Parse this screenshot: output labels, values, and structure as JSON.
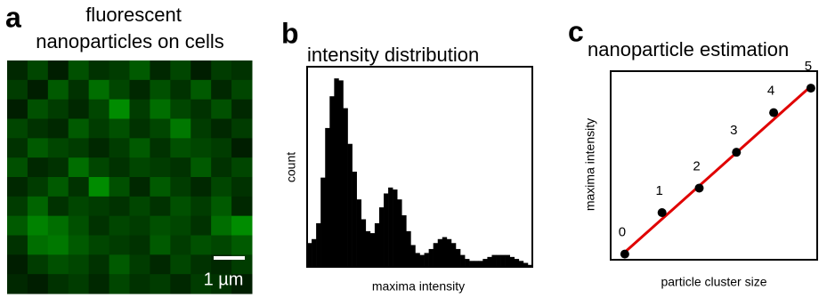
{
  "chart_data": [
    {
      "type": "heatmap",
      "panel": "a",
      "title": [
        "fluorescent",
        "nanoparticles on cells"
      ],
      "color": "#00c800",
      "scale_bar_label": "1 µm",
      "values": [
        [
          20,
          35,
          15,
          40,
          25,
          30,
          45,
          20,
          35,
          15,
          30,
          25
        ],
        [
          30,
          15,
          45,
          25,
          55,
          35,
          20,
          40,
          25,
          45,
          20,
          35
        ],
        [
          15,
          40,
          30,
          20,
          35,
          70,
          30,
          55,
          35,
          25,
          40,
          20
        ],
        [
          35,
          25,
          20,
          45,
          30,
          40,
          25,
          35,
          60,
          30,
          20,
          30
        ],
        [
          25,
          45,
          35,
          30,
          20,
          30,
          45,
          25,
          40,
          35,
          30,
          15
        ],
        [
          40,
          20,
          25,
          55,
          35,
          25,
          35,
          30,
          25,
          45,
          25,
          35
        ],
        [
          20,
          30,
          45,
          25,
          70,
          40,
          20,
          45,
          30,
          20,
          35,
          25
        ],
        [
          30,
          50,
          25,
          35,
          30,
          25,
          35,
          25,
          40,
          30,
          45,
          20
        ],
        [
          45,
          65,
          55,
          40,
          25,
          35,
          30,
          40,
          35,
          25,
          55,
          70
        ],
        [
          25,
          55,
          60,
          45,
          35,
          30,
          25,
          45,
          30,
          40,
          35,
          45
        ],
        [
          15,
          30,
          40,
          35,
          25,
          45,
          30,
          20,
          35,
          25,
          20,
          30
        ],
        [
          20,
          15,
          25,
          30,
          20,
          35,
          25,
          30,
          20,
          30,
          25,
          15
        ]
      ],
      "zlim": [
        0,
        100
      ]
    },
    {
      "type": "histogram",
      "panel": "b",
      "title": "intensity distribution",
      "xlabel": "maxima intensity",
      "ylabel": "count",
      "color": "#000000",
      "bins": [
        0,
        1,
        2,
        3,
        4,
        5,
        6,
        7,
        8,
        9,
        10,
        11,
        12,
        13,
        14,
        15,
        16,
        17,
        18,
        19,
        20,
        21,
        22,
        23,
        24,
        25,
        26,
        27,
        28,
        29,
        30,
        31,
        32,
        33,
        34,
        35,
        36,
        37,
        38,
        39,
        40,
        41,
        42,
        43,
        44,
        45,
        46,
        47,
        48,
        49,
        50
      ],
      "values": [
        12,
        14,
        22,
        45,
        70,
        86,
        95,
        94,
        80,
        62,
        48,
        34,
        24,
        18,
        17,
        22,
        30,
        37,
        40,
        39,
        34,
        26,
        18,
        11,
        7,
        6,
        7,
        9,
        12,
        14,
        15,
        14,
        12,
        9,
        6,
        4,
        3,
        3,
        3,
        4,
        5,
        6,
        6,
        6,
        6,
        5,
        4,
        3,
        2,
        1
      ],
      "xlim": [
        0,
        50
      ],
      "ylim": [
        0,
        100
      ]
    },
    {
      "type": "scatter",
      "panel": "c",
      "title": "nanoparticle estimation",
      "xlabel": "particle cluster size",
      "ylabel": "maxima intensity",
      "color": "#000000",
      "x": [
        0,
        1,
        2,
        3,
        4,
        5
      ],
      "values": [
        0.03,
        0.25,
        0.38,
        0.57,
        0.78,
        0.91
      ],
      "fit": {
        "color": "#e00000",
        "x": [
          0,
          5
        ],
        "values": [
          0.04,
          0.92
        ]
      },
      "xlim": [
        -0.38,
        5.17
      ],
      "ylim": [
        0,
        1
      ]
    }
  ]
}
